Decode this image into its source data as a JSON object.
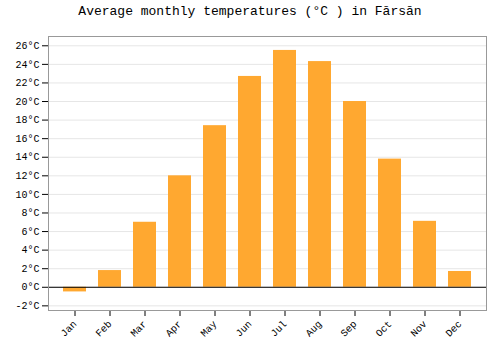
{
  "chart_data": {
    "type": "bar",
    "title": "Average monthly temperatures (°C ) in Fārsān",
    "categories": [
      "Jan",
      "Feb",
      "Mar",
      "Apr",
      "May",
      "Jun",
      "Jul",
      "Aug",
      "Sep",
      "Oct",
      "Nov",
      "Dec"
    ],
    "values": [
      -0.5,
      1.8,
      7.0,
      12.0,
      17.4,
      22.7,
      25.5,
      24.3,
      20.0,
      13.8,
      7.1,
      1.7
    ],
    "color": "#FFA830",
    "ylim": [
      -2.5,
      27
    ],
    "yticks": [
      {
        "value": -2,
        "label": "-2°C"
      },
      {
        "value": 0,
        "label": "0°C"
      },
      {
        "value": 2,
        "label": "2°C"
      },
      {
        "value": 4,
        "label": "4°C"
      },
      {
        "value": 6,
        "label": "6°C"
      },
      {
        "value": 8,
        "label": "8°C"
      },
      {
        "value": 10,
        "label": "10°C"
      },
      {
        "value": 12,
        "label": "12°C"
      },
      {
        "value": 14,
        "label": "14°C"
      },
      {
        "value": 16,
        "label": "16°C"
      },
      {
        "value": 18,
        "label": "18°C"
      },
      {
        "value": 20,
        "label": "20°C"
      },
      {
        "value": 22,
        "label": "22°C"
      },
      {
        "value": 24,
        "label": "24°C"
      },
      {
        "value": 26,
        "label": "26°C"
      }
    ],
    "grid": true
  }
}
